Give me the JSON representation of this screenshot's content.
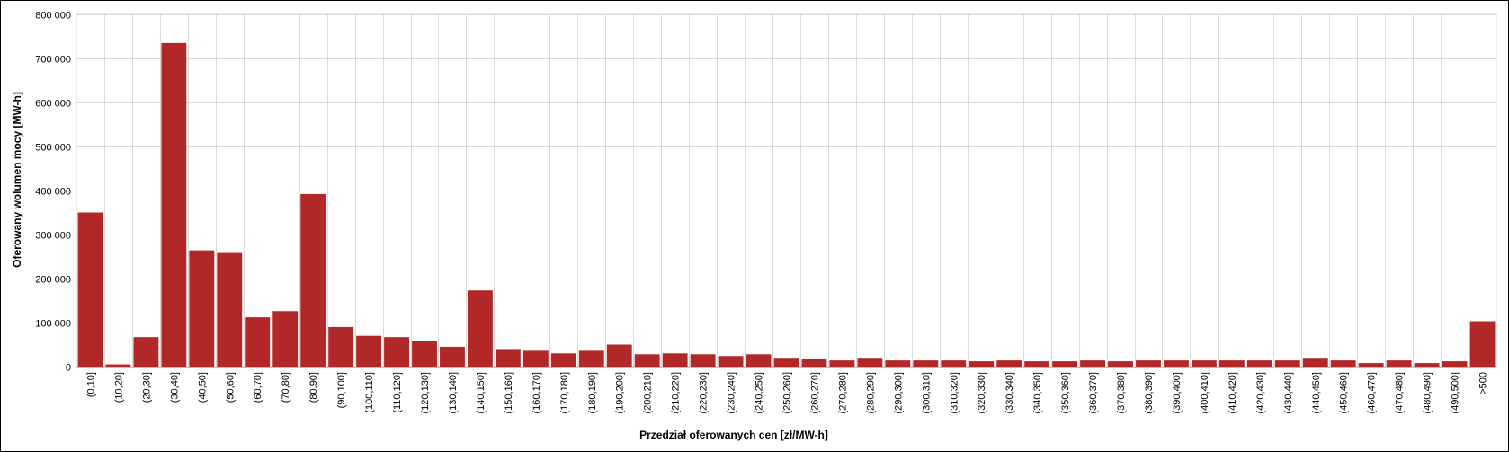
{
  "chart_data": {
    "type": "bar",
    "xlabel": "Przedział oferowanych cen [zł/MW-h]",
    "ylabel": "Oferowany wolumen mocy [MW-h]",
    "ylim": [
      0,
      800000
    ],
    "yticks": [
      "0",
      "100 000",
      "200 000",
      "300 000",
      "400 000",
      "500 000",
      "600 000",
      "700 000",
      "800 000"
    ],
    "grid": true,
    "bar_color": "#B22828",
    "categories": [
      "(0,10]",
      "(10,20]",
      "(20,30]",
      "(30,40]",
      "(40,50]",
      "(50,60]",
      "(60,70]",
      "(70,80]",
      "(80,90]",
      "(90,100]",
      "(100,110]",
      "(110,120]",
      "(120,130]",
      "(130,140]",
      "(140,150]",
      "(150,160]",
      "(160,170]",
      "(170,180]",
      "(180,190]",
      "(190,200]",
      "(200,210]",
      "(210,220]",
      "(220,230]",
      "(230,240]",
      "(240,250]",
      "(250,260]",
      "(260,270]",
      "(270,280]",
      "(280,290]",
      "(290,300]",
      "(300,310]",
      "(310,320]",
      "(320,330]",
      "(330,340]",
      "(340,350]",
      "(350,360]",
      "(360,370]",
      "(370,380]",
      "(380,390]",
      "(390,400]",
      "(400,410]",
      "(410,420]",
      "(420,430]",
      "(430,440]",
      "(440,450]",
      "(450,460]",
      "(460,470]",
      "(470,480]",
      "(480,490]",
      "(490,500]",
      ">500"
    ],
    "values": [
      350000,
      5000,
      67000,
      735000,
      264000,
      260000,
      112000,
      126000,
      392000,
      90000,
      70000,
      67000,
      58000,
      45000,
      173000,
      40000,
      36000,
      30000,
      36000,
      50000,
      28000,
      30000,
      28000,
      24000,
      28000,
      20000,
      18000,
      14000,
      20000,
      14000,
      14000,
      14000,
      12000,
      14000,
      12000,
      12000,
      14000,
      12000,
      14000,
      14000,
      14000,
      14000,
      14000,
      14000,
      20000,
      14000,
      8000,
      14000,
      8000,
      12000,
      103000
    ]
  }
}
